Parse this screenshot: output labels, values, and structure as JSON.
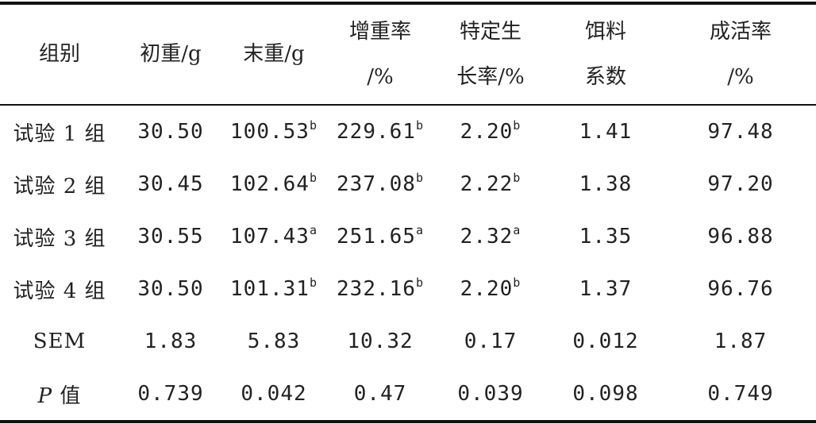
{
  "table": {
    "headers": [
      {
        "line1": "组别",
        "line2": ""
      },
      {
        "line1": "初重/g",
        "line2": ""
      },
      {
        "line1": "末重/g",
        "line2": ""
      },
      {
        "line1": "增重率",
        "line2": "/%"
      },
      {
        "line1": "特定生",
        "line2": "长率/%"
      },
      {
        "line1": "饵料",
        "line2": "系数"
      },
      {
        "line1": "成活率",
        "line2": "/%"
      }
    ],
    "rows": [
      {
        "group": "试验 1 组",
        "cells": [
          {
            "v": "30.50",
            "s": ""
          },
          {
            "v": "100.53",
            "s": "b"
          },
          {
            "v": "229.61",
            "s": "b"
          },
          {
            "v": "2.20",
            "s": "b"
          },
          {
            "v": "1.41",
            "s": ""
          },
          {
            "v": "97.48",
            "s": ""
          }
        ]
      },
      {
        "group": "试验 2 组",
        "cells": [
          {
            "v": "30.45",
            "s": ""
          },
          {
            "v": "102.64",
            "s": "b"
          },
          {
            "v": "237.08",
            "s": "b"
          },
          {
            "v": "2.22",
            "s": "b"
          },
          {
            "v": "1.38",
            "s": ""
          },
          {
            "v": "97.20",
            "s": ""
          }
        ]
      },
      {
        "group": "试验 3 组",
        "cells": [
          {
            "v": "30.55",
            "s": ""
          },
          {
            "v": "107.43",
            "s": "a"
          },
          {
            "v": "251.65",
            "s": "a"
          },
          {
            "v": "2.32",
            "s": "a"
          },
          {
            "v": "1.35",
            "s": ""
          },
          {
            "v": "96.88",
            "s": ""
          }
        ]
      },
      {
        "group": "试验 4 组",
        "cells": [
          {
            "v": "30.50",
            "s": ""
          },
          {
            "v": "101.31",
            "s": "b"
          },
          {
            "v": "232.16",
            "s": "b"
          },
          {
            "v": "2.20",
            "s": "b"
          },
          {
            "v": "1.37",
            "s": ""
          },
          {
            "v": "96.76",
            "s": ""
          }
        ]
      },
      {
        "group": "SEM",
        "cells": [
          {
            "v": "1.83",
            "s": ""
          },
          {
            "v": "5.83",
            "s": ""
          },
          {
            "v": "10.32",
            "s": ""
          },
          {
            "v": "0.17",
            "s": ""
          },
          {
            "v": "0.012",
            "s": ""
          },
          {
            "v": "1.87",
            "s": ""
          }
        ]
      },
      {
        "group": "P 值",
        "italic_prefix": "P",
        "group_rest": " 值",
        "cells": [
          {
            "v": "0.739",
            "s": ""
          },
          {
            "v": "0.042",
            "s": ""
          },
          {
            "v": "0.47",
            "s": ""
          },
          {
            "v": "0.039",
            "s": ""
          },
          {
            "v": "0.098",
            "s": ""
          },
          {
            "v": "0.749",
            "s": ""
          }
        ]
      }
    ]
  }
}
